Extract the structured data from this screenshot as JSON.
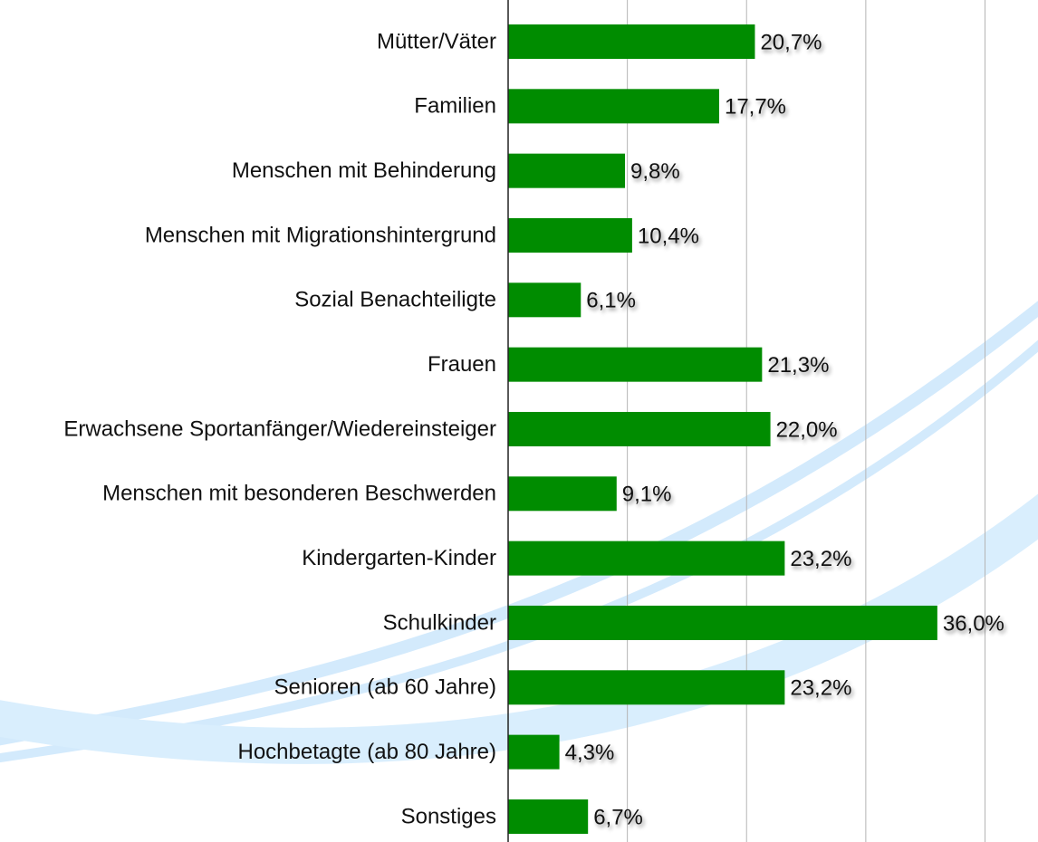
{
  "chart_data": {
    "type": "hbar",
    "categories": [
      "Mütter/Väter",
      "Familien",
      "Menschen mit Behinderung",
      "Menschen mit Migrationshintergrund",
      "Sozial Benachteiligte",
      "Frauen",
      "Erwachsene Sportanfänger/Wiedereinsteiger",
      "Menschen mit besonderen Beschwerden",
      "Kindergarten-Kinder",
      "Schulkinder",
      "Senioren (ab 60 Jahre)",
      "Hochbetagte (ab 80 Jahre)",
      "Sonstiges"
    ],
    "values": [
      20.7,
      17.7,
      9.8,
      10.4,
      6.1,
      21.3,
      22.0,
      9.1,
      23.2,
      36.0,
      23.2,
      4.3,
      6.7
    ],
    "value_labels": [
      "20,7%",
      "17,7%",
      "9,8%",
      "10,4%",
      "6,1%",
      "21,3%",
      "22,0%",
      "9,1%",
      "23,2%",
      "36,0%",
      "23,2%",
      "4,3%",
      "6,7%"
    ],
    "color": "#008c00",
    "xlim": [
      0,
      40
    ],
    "xticks": [
      0,
      10,
      20,
      30,
      40
    ],
    "grid": true
  }
}
